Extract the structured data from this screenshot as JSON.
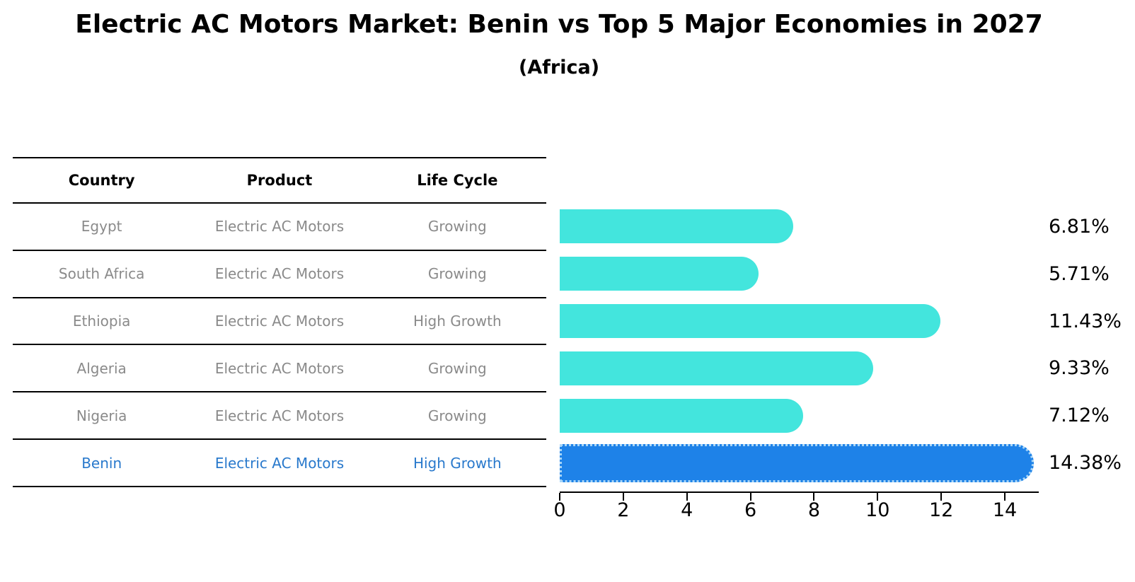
{
  "page": {
    "title": "Electric AC Motors Market: Benin vs Top 5 Major Economies in 2027",
    "subtitle": "(Africa)"
  },
  "colors": {
    "bar_default": "#43e5dd",
    "bar_highlight": "#1e82e8",
    "bar_highlight_dot_edge": "#a9d6f7",
    "highlight_text": "#2979cc",
    "table_text": "#8a8a8a",
    "axis": "#000000"
  },
  "table": {
    "headers": [
      "Country",
      "Product",
      "Life Cycle"
    ],
    "rows": [
      {
        "country": "Egypt",
        "product": "Electric AC Motors",
        "life_cycle": "Growing",
        "highlight": false
      },
      {
        "country": "South Africa",
        "product": "Electric AC Motors",
        "life_cycle": "Growing",
        "highlight": false
      },
      {
        "country": "Ethiopia",
        "product": "Electric AC Motors",
        "life_cycle": "High Growth",
        "highlight": false
      },
      {
        "country": "Algeria",
        "product": "Electric AC Motors",
        "life_cycle": "Growing",
        "highlight": false
      },
      {
        "country": "Nigeria",
        "product": "Electric AC Motors",
        "life_cycle": "Growing",
        "highlight": false
      },
      {
        "country": "Benin",
        "product": "Electric AC Motors",
        "life_cycle": "High Growth",
        "highlight": true
      }
    ]
  },
  "chart_data": {
    "type": "bar",
    "orientation": "horizontal",
    "title": "Electric AC Motors Market: Benin vs Top 5 Major Economies in 2027",
    "subtitle": "(Africa)",
    "categories": [
      "Egypt",
      "South Africa",
      "Ethiopia",
      "Algeria",
      "Nigeria",
      "Benin"
    ],
    "values": [
      6.81,
      5.71,
      11.43,
      9.33,
      7.12,
      14.38
    ],
    "value_labels": [
      "6.81%",
      "5.71%",
      "11.43%",
      "9.33%",
      "7.12%",
      "14.38%"
    ],
    "highlight_index": 5,
    "xlim": [
      0,
      15
    ],
    "x_ticks": [
      0,
      2,
      4,
      6,
      8,
      10,
      12,
      14
    ],
    "xlabel": "",
    "ylabel": "",
    "grid": false,
    "legend": false
  }
}
